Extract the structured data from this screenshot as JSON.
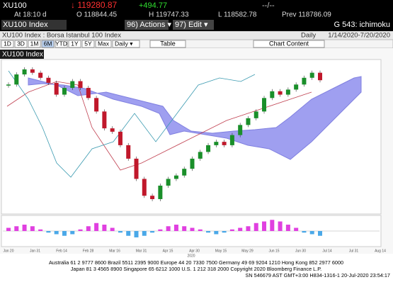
{
  "header": {
    "ticker": "XU100",
    "last": "↓ 119280.87",
    "change": "+494.77",
    "size": "--/--",
    "time": "At 18:10 d",
    "open": "O 118844.45",
    "high": "H 119747.33",
    "low": "L 118582.78",
    "prev": "Prev 118786.09"
  },
  "menu": {
    "security": "XU100 Index",
    "actions": "96) Actions ▾",
    "edit": "97) Edit ▾",
    "function": "G 543: ichimoku"
  },
  "subheader": {
    "description": "XU100 Index : Borsa Istanbul 100 Index",
    "period": "Daily",
    "range": "1/14/2020-7/20/2020"
  },
  "toolbar": {
    "ranges": [
      "1D",
      "3D",
      "1M",
      "6M",
      "YTD",
      "1Y",
      "5Y",
      "Max"
    ],
    "frequency": "Daily ▾",
    "table": "Table",
    "content": "Chart Content"
  },
  "chart_data": {
    "type": "candlestick",
    "title": "XU100 Index",
    "values": [
      118000,
      121000,
      122500,
      121500,
      120000,
      118500,
      115000,
      117000,
      119000,
      117000,
      114000,
      110000,
      105000,
      104000,
      100000,
      96000,
      90000,
      85000,
      84000,
      88000,
      90000,
      91000,
      93000,
      96000,
      98000,
      100000,
      101000,
      100000,
      103000,
      106000,
      108000,
      110000,
      114000,
      116000,
      115000,
      116500,
      118000,
      120000,
      121500,
      119280.87
    ],
    "ylim": [
      80000,
      125000
    ],
    "up_color": "#1a8f2a",
    "down_color": "#c0182b",
    "x_labels": [
      "Jan 20",
      "Jan 31",
      "Feb 14",
      "Feb 28",
      "Mar 16",
      "Mar 31",
      "Apr 15",
      "Apr 30",
      "May 15",
      "May 29",
      "Jun 15",
      "Jun 30",
      "Jul 14",
      "Jul 31",
      "Aug 14"
    ],
    "year": "2020",
    "macd": {
      "values": [
        2,
        3,
        4,
        3,
        1,
        -1,
        -2,
        -3,
        -2,
        1,
        3,
        5,
        4,
        2,
        -1,
        -3,
        -4,
        -3,
        -1,
        1,
        3,
        4,
        3,
        2,
        1,
        -1,
        -2,
        -1,
        1,
        2,
        3,
        5,
        6,
        7,
        6,
        4,
        2,
        -1,
        -2,
        -3
      ],
      "ylim": [
        -8,
        8
      ],
      "up_color": "#e040e0",
      "down_color": "#4aa8e8"
    }
  },
  "footer": {
    "line1": "Australia 61 2 9777 8600 Brazil 5511 2395 9000 Europe 44 20 7330 7500 Germany 49 69 9204 1210 Hong Kong 852 2977 6000",
    "line2": "Japan 81 3 4565 8900      Singapore 65 6212 1000      U.S. 1 212 318 2000      Copyright 2020 Bloomberg Finance L.P.",
    "line3": "SN 546679 AST  GMT+3:00 H834-1316-1 20-Jul-2020 23:54:17"
  }
}
